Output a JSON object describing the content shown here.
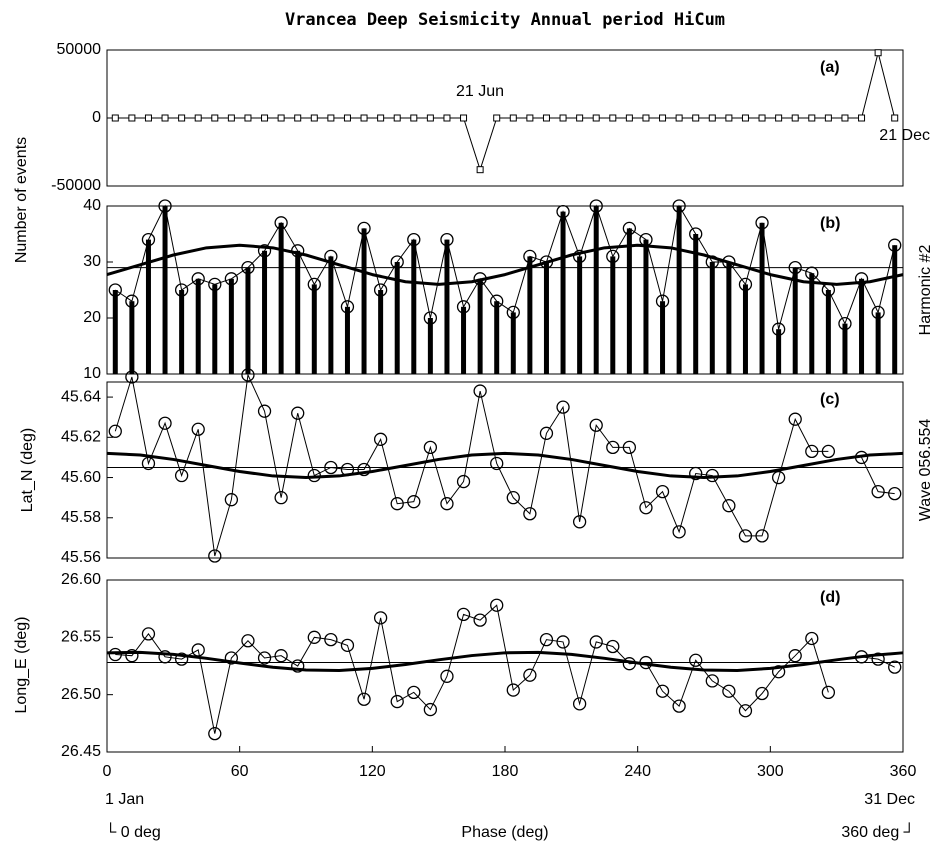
{
  "title": "Vrancea Deep Seismicity Annual period HiCum",
  "y_labels": [
    "Number of events",
    "Lat_N (deg)",
    "Long_E (deg)"
  ],
  "right_labels": [
    "Harmonic #2",
    "Wave 056.554"
  ],
  "x_label": "Phase (deg)",
  "x_notes": [
    "1 Jan",
    "31 Dec",
    "└ 0 deg",
    "360 deg ┘"
  ],
  "chart_data": [
    {
      "type": "line",
      "label": "(a)",
      "marker": "square",
      "annotations": [
        "21 Jun",
        "21 Dec"
      ],
      "xlim": [
        0,
        360
      ],
      "ylim": [
        -50000,
        50000
      ],
      "yticks": [
        -50000,
        0,
        50000
      ],
      "x": [
        3.75,
        11.25,
        18.75,
        26.25,
        33.75,
        41.25,
        48.75,
        56.25,
        63.75,
        71.25,
        78.75,
        86.25,
        93.75,
        101.25,
        108.75,
        116.25,
        123.75,
        131.25,
        138.75,
        146.25,
        153.75,
        161.25,
        168.75,
        176.25,
        183.75,
        191.25,
        198.75,
        206.25,
        213.75,
        221.25,
        228.75,
        236.25,
        243.75,
        251.25,
        258.75,
        266.25,
        273.75,
        281.25,
        288.75,
        296.25,
        303.75,
        311.25,
        318.75,
        326.25,
        333.75,
        341.25,
        348.75,
        356.25
      ],
      "series": [
        {
          "color": "#000000",
          "values": [
            0,
            0,
            0,
            0,
            0,
            0,
            0,
            0,
            0,
            0,
            0,
            0,
            0,
            0,
            0,
            0,
            0,
            0,
            0,
            0,
            0,
            0,
            -38000,
            0,
            0,
            0,
            0,
            0,
            0,
            0,
            0,
            0,
            0,
            0,
            0,
            0,
            0,
            0,
            0,
            0,
            0,
            0,
            0,
            0,
            0,
            0,
            48000,
            0
          ]
        }
      ]
    },
    {
      "type": "stem",
      "label": "(b)",
      "marker": "circle",
      "xlim": [
        0,
        360
      ],
      "ylim": [
        10,
        40
      ],
      "yticks": [
        10,
        20,
        30,
        40
      ],
      "x": [
        3.75,
        11.25,
        18.75,
        26.25,
        33.75,
        41.25,
        48.75,
        56.25,
        63.75,
        71.25,
        78.75,
        86.25,
        93.75,
        101.25,
        108.75,
        116.25,
        123.75,
        131.25,
        138.75,
        146.25,
        153.75,
        161.25,
        168.75,
        176.25,
        183.75,
        191.25,
        198.75,
        206.25,
        213.75,
        221.25,
        228.75,
        236.25,
        243.75,
        251.25,
        258.75,
        266.25,
        273.75,
        281.25,
        288.75,
        296.25,
        303.75,
        311.25,
        318.75,
        326.25,
        333.75,
        341.25,
        348.75,
        356.25
      ],
      "series": [
        {
          "color": "#000000",
          "values": [
            25,
            23,
            34,
            40,
            25,
            27,
            26,
            27,
            29,
            32,
            37,
            32,
            26,
            31,
            22,
            36,
            25,
            30,
            34,
            20,
            34,
            22,
            27,
            23,
            21,
            31,
            30,
            39,
            31,
            40,
            31,
            36,
            34,
            23,
            40,
            35,
            30,
            30,
            26,
            37,
            18,
            29,
            28,
            25,
            19,
            27,
            21,
            33
          ]
        }
      ],
      "mean": 29,
      "fit": {
        "x": [
          0,
          15,
          30,
          45,
          60,
          75,
          90,
          105,
          120,
          135,
          150,
          165,
          180,
          195,
          210,
          225,
          240,
          255,
          270,
          285,
          300,
          315,
          330,
          345,
          360
        ],
        "values": [
          27.75,
          29.5,
          31.25,
          32.53,
          33,
          32.53,
          31.25,
          29.5,
          27.75,
          26.47,
          26,
          26.47,
          27.75,
          29.5,
          31.25,
          32.53,
          33,
          32.53,
          31.25,
          29.5,
          27.75,
          26.47,
          26,
          26.47,
          27.75
        ]
      }
    },
    {
      "type": "line",
      "label": "(c)",
      "marker": "circle",
      "xlim": [
        0,
        360
      ],
      "ylim": [
        45.56,
        45.6475
      ],
      "yticks": [
        45.56,
        45.58,
        {
          "value": 45.6,
          "label": "45.60"
        },
        45.62,
        45.64
      ],
      "x": [
        3.75,
        11.25,
        18.75,
        26.25,
        33.75,
        41.25,
        48.75,
        56.25,
        63.75,
        71.25,
        78.75,
        86.25,
        93.75,
        101.25,
        108.75,
        116.25,
        123.75,
        131.25,
        138.75,
        146.25,
        153.75,
        161.25,
        168.75,
        176.25,
        183.75,
        191.25,
        198.75,
        206.25,
        213.75,
        221.25,
        228.75,
        236.25,
        243.75,
        251.25,
        258.75,
        266.25,
        273.75,
        281.25,
        288.75,
        296.25,
        303.75,
        311.25,
        318.75,
        326.25,
        333.75,
        341.25,
        348.75,
        356.25
      ],
      "series": [
        {
          "color": "#000000",
          "values": [
            45.623,
            45.65,
            45.607,
            45.627,
            45.601,
            45.624,
            45.561,
            45.589,
            45.651,
            45.633,
            45.59,
            45.632,
            45.601,
            45.605,
            45.604,
            45.604,
            45.619,
            45.587,
            45.588,
            45.615,
            45.587,
            45.598,
            45.643,
            45.607,
            45.59,
            45.582,
            45.622,
            45.635,
            45.578,
            45.626,
            45.615,
            45.615,
            45.585,
            45.593,
            45.573,
            45.602,
            45.601,
            45.586,
            45.571,
            45.571,
            45.6,
            45.629,
            45.613,
            45.613,
            null,
            45.61,
            45.593,
            45.592
          ]
        }
      ],
      "mean": 45.605,
      "fit": {
        "x": [
          0,
          15,
          30,
          45,
          60,
          75,
          90,
          105,
          120,
          135,
          150,
          165,
          180,
          195,
          210,
          225,
          240,
          255,
          270,
          285,
          300,
          315,
          330,
          345,
          360
        ],
        "values": [
          45.612,
          45.6112,
          45.609,
          45.606,
          45.603,
          45.6008,
          45.6,
          45.6008,
          45.603,
          45.606,
          45.609,
          45.6112,
          45.612,
          45.6112,
          45.609,
          45.606,
          45.603,
          45.6008,
          45.6,
          45.6008,
          45.603,
          45.606,
          45.609,
          45.6112,
          45.612
        ]
      }
    },
    {
      "type": "line",
      "label": "(d)",
      "marker": "circle",
      "xlim": [
        0,
        360
      ],
      "ylim": [
        26.45,
        26.6
      ],
      "xticks": [
        0,
        60,
        120,
        180,
        240,
        300,
        360
      ],
      "yticks": [
        26.45,
        {
          "value": 26.5,
          "label": "26.50"
        },
        26.55,
        {
          "value": 26.6,
          "label": "26.60"
        }
      ],
      "x": [
        3.75,
        11.25,
        18.75,
        26.25,
        33.75,
        41.25,
        48.75,
        56.25,
        63.75,
        71.25,
        78.75,
        86.25,
        93.75,
        101.25,
        108.75,
        116.25,
        123.75,
        131.25,
        138.75,
        146.25,
        153.75,
        161.25,
        168.75,
        176.25,
        183.75,
        191.25,
        198.75,
        206.25,
        213.75,
        221.25,
        228.75,
        236.25,
        243.75,
        251.25,
        258.75,
        266.25,
        273.75,
        281.25,
        288.75,
        296.25,
        303.75,
        311.25,
        318.75,
        326.25,
        333.75,
        341.25,
        348.75,
        356.25
      ],
      "series": [
        {
          "color": "#000000",
          "values": [
            26.535,
            26.534,
            26.553,
            26.533,
            26.531,
            26.539,
            26.466,
            26.532,
            26.547,
            26.532,
            26.534,
            26.525,
            26.55,
            26.548,
            26.543,
            26.496,
            26.567,
            26.494,
            26.502,
            26.487,
            26.516,
            26.57,
            26.565,
            26.578,
            26.504,
            26.517,
            26.548,
            26.546,
            26.492,
            26.546,
            26.542,
            26.527,
            26.528,
            26.503,
            26.49,
            26.53,
            26.512,
            26.503,
            26.486,
            26.501,
            26.52,
            26.534,
            26.549,
            26.502,
            null,
            26.533,
            26.531,
            26.524
          ]
        }
      ],
      "mean": 26.528,
      "fit": {
        "x": [
          0,
          15,
          30,
          45,
          60,
          75,
          90,
          105,
          120,
          135,
          150,
          165,
          180,
          195,
          210,
          225,
          240,
          255,
          270,
          285,
          300,
          315,
          330,
          345,
          360
        ],
        "values": [
          26.5365,
          26.5369,
          26.5351,
          26.5317,
          26.5276,
          26.5239,
          26.5215,
          26.5211,
          26.5229,
          26.5263,
          26.5304,
          26.5341,
          26.5365,
          26.5369,
          26.5351,
          26.5317,
          26.5276,
          26.5239,
          26.5215,
          26.5211,
          26.5229,
          26.5263,
          26.5304,
          26.5341,
          26.5365
        ]
      }
    }
  ]
}
